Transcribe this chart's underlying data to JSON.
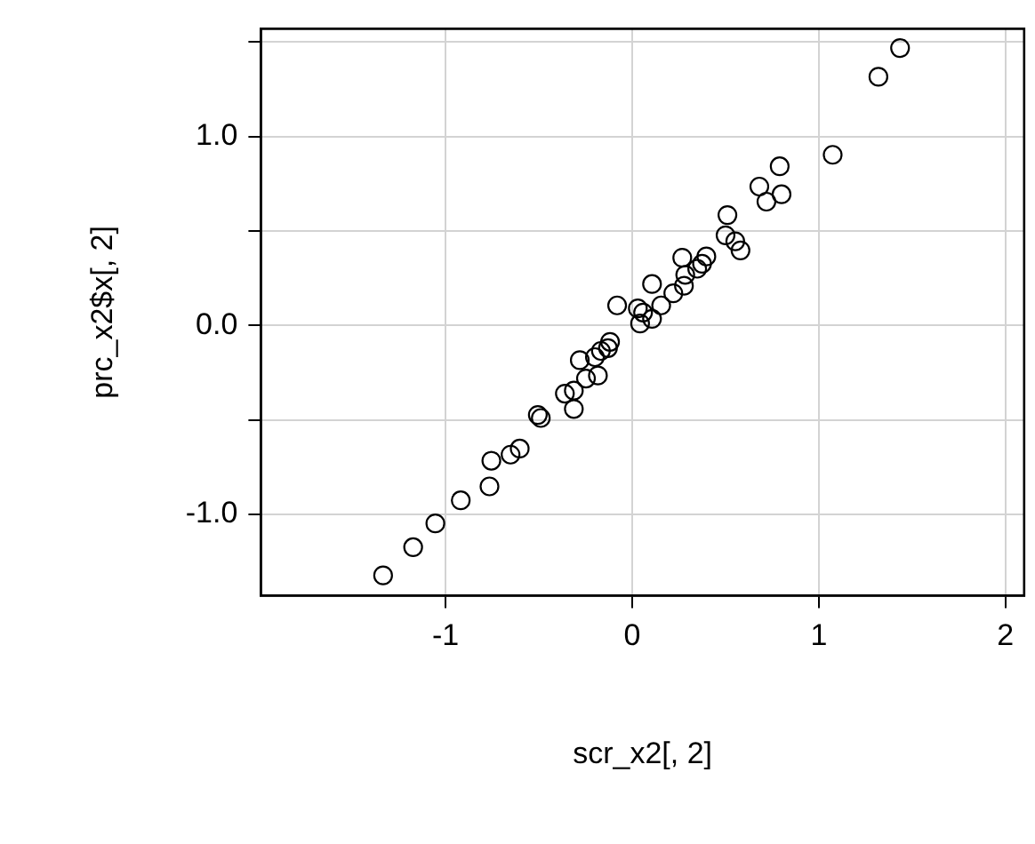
{
  "chart_data": {
    "type": "scatter",
    "xlabel": "scr_x2[, 2]",
    "ylabel": "prc_x2$x[, 2]",
    "x": [
      1.435,
      1.319,
      1.074,
      0.79,
      0.681,
      0.719,
      0.8,
      0.51,
      0.5,
      0.58,
      0.552,
      0.268,
      0.397,
      0.374,
      0.348,
      0.277,
      0.284,
      0.106,
      0.155,
      0.106,
      0.058,
      0.042,
      -0.081,
      -0.119,
      -0.168,
      -0.2,
      -0.184,
      -0.281,
      -0.248,
      -0.313,
      -0.313,
      -0.361,
      -0.49,
      -0.506,
      -0.603,
      -0.652,
      -0.755,
      -0.765,
      -0.919,
      -1.055,
      -1.174,
      -1.335,
      -0.13,
      0.03,
      0.22
    ],
    "values": [
      1.468,
      1.316,
      0.903,
      0.842,
      0.735,
      0.655,
      0.694,
      0.584,
      0.477,
      0.397,
      0.445,
      0.358,
      0.365,
      0.326,
      0.3,
      0.21,
      0.268,
      0.219,
      0.106,
      0.035,
      0.068,
      0.01,
      0.106,
      -0.087,
      -0.135,
      -0.168,
      -0.265,
      -0.184,
      -0.281,
      -0.345,
      -0.442,
      -0.361,
      -0.49,
      -0.474,
      -0.652,
      -0.684,
      -0.716,
      -0.852,
      -0.926,
      -1.048,
      -1.174,
      -1.323,
      -0.12,
      0.09,
      0.17
    ],
    "color": "#000000",
    "marker": "circle",
    "grid": true,
    "xlim": [
      -1.99,
      2.1
    ],
    "xticks": [
      -1,
      0,
      1,
      2
    ],
    "ylim": [
      -1.43,
      1.57
    ],
    "yticks": [
      {
        "value": -1,
        "label": "-1.0"
      },
      {
        "value": -0.5,
        "label": null
      },
      {
        "value": 0,
        "label": "0.0"
      },
      {
        "value": 0.5,
        "label": null
      },
      {
        "value": 1,
        "label": "1.0"
      },
      {
        "value": 1.5,
        "label": null
      }
    ]
  }
}
